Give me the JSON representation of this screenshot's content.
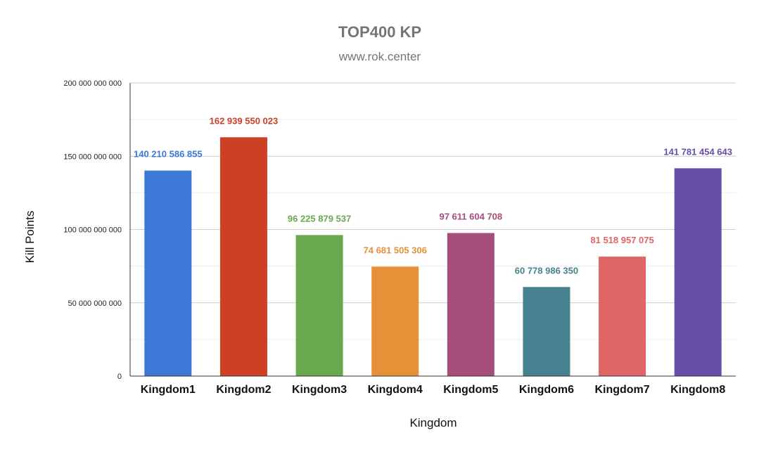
{
  "chart_data": {
    "type": "bar",
    "title": "TOP400 KP",
    "subtitle": "www.rok.center",
    "xlabel": "Kingdom",
    "ylabel": "Kill Points",
    "categories": [
      "Kingdom1",
      "Kingdom2",
      "Kingdom3",
      "Kingdom4",
      "Kingdom5",
      "Kingdom6",
      "Kingdom7",
      "Kingdom8"
    ],
    "values": [
      140210586855,
      162939550023,
      96225879537,
      74681505306,
      97611604708,
      60778986350,
      81518957075,
      141781454643
    ],
    "data_labels": [
      "140 210 586 855",
      "162 939 550 023",
      "96 225 879 537",
      "74 681 505 306",
      "97 611 604 708",
      "60 778 986 350",
      "81 518 957 075",
      "141 781 454 643"
    ],
    "colors": [
      "#3c78d8",
      "#cc4125",
      "#6aa84f",
      "#e69138",
      "#a64d79",
      "#45818e",
      "#e06666",
      "#674ea7"
    ],
    "ylim": [
      0,
      200000000000
    ],
    "yticks": [
      0,
      50000000000,
      100000000000,
      150000000000,
      200000000000
    ],
    "ytick_labels": [
      "0",
      "50 000 000 000",
      "100 000 000 000",
      "150 000 000 000",
      "200 000 000 000"
    ],
    "grid": true,
    "legend": "none"
  }
}
